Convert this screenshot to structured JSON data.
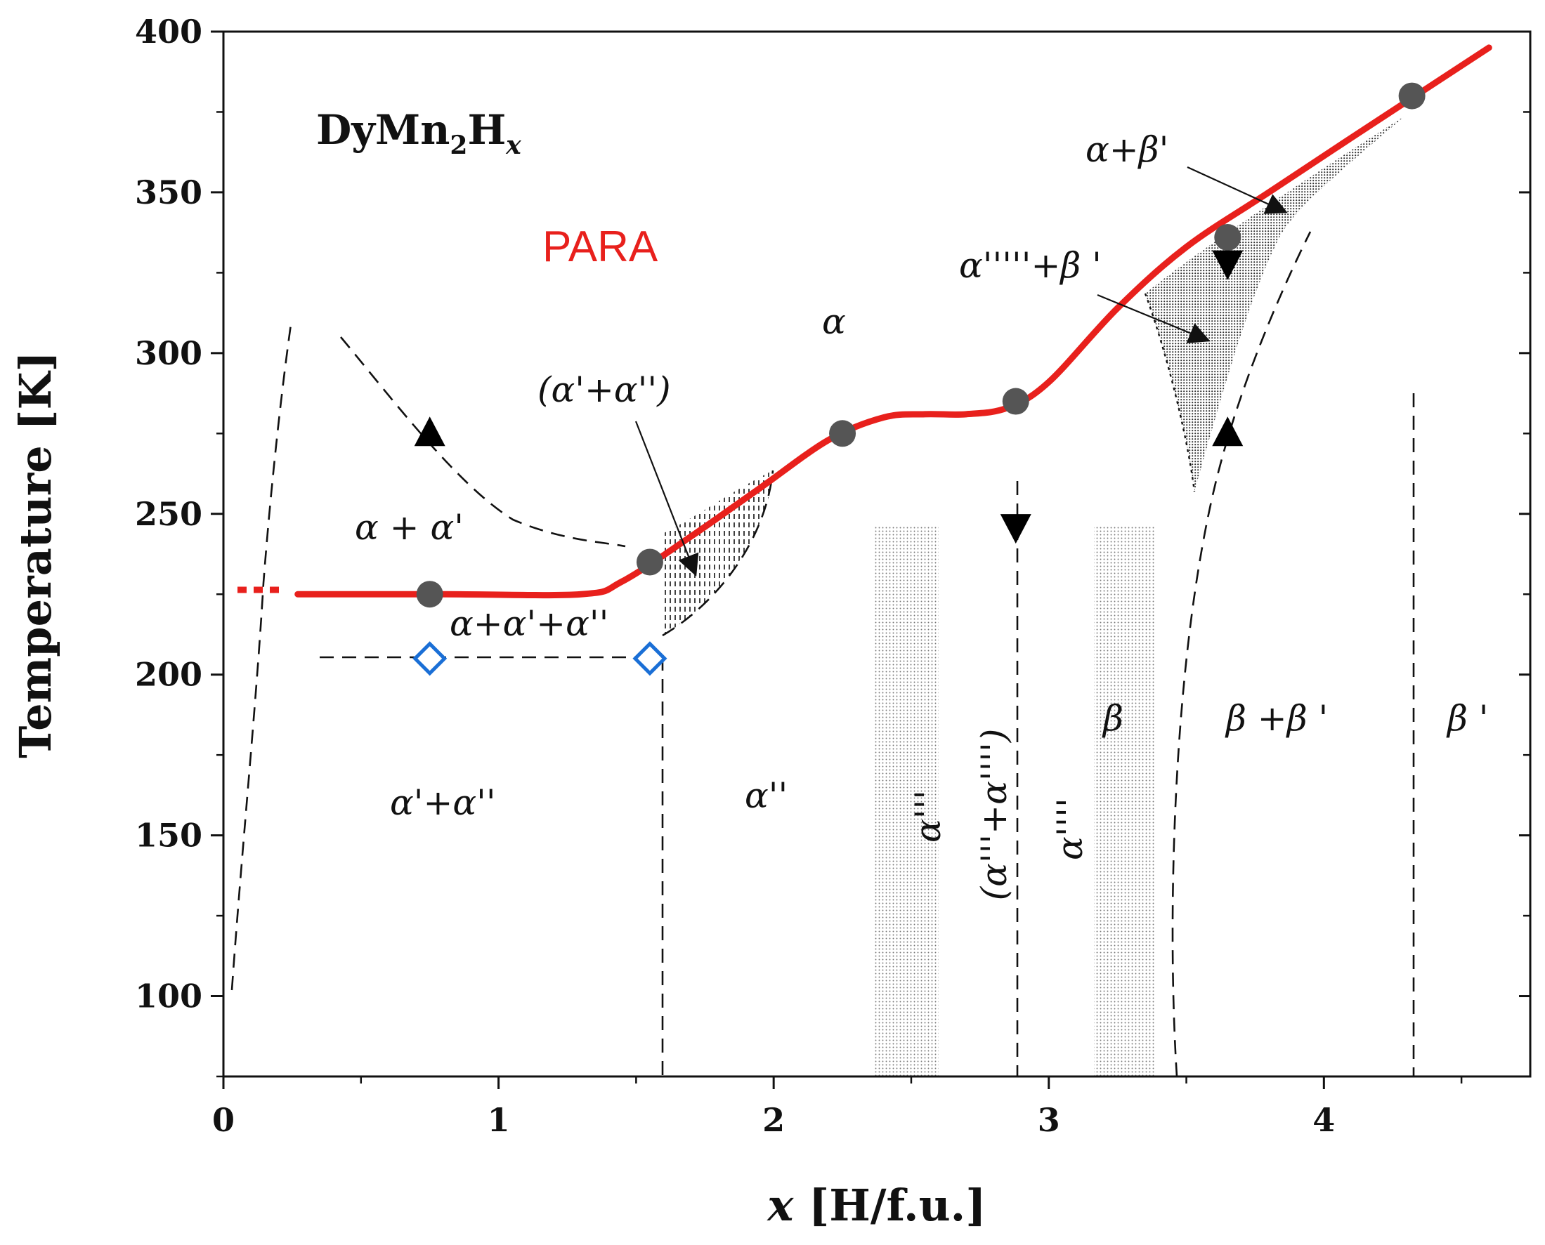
{
  "chart_data": {
    "type": "scatter",
    "title": "",
    "compound_label": {
      "base": "DyMn",
      "sub1": "2",
      "mid": "H",
      "sub2": "x"
    },
    "xlabel": {
      "var": "x",
      "unit": " [H/f.u.]"
    },
    "ylabel": "Temperature [K]",
    "xlim": [
      0,
      4.75
    ],
    "ylim": [
      75,
      400
    ],
    "x_ticks": [
      {
        "value": 0,
        "label": "0"
      },
      {
        "value": 1,
        "label": "1"
      },
      {
        "value": 2,
        "label": "2"
      },
      {
        "value": 3,
        "label": "3"
      },
      {
        "value": 4,
        "label": "4"
      }
    ],
    "y_ticks": [
      {
        "value": 100,
        "label": "100"
      },
      {
        "value": 150,
        "label": "150"
      },
      {
        "value": 200,
        "label": "200"
      },
      {
        "value": 250,
        "label": "250"
      },
      {
        "value": 300,
        "label": "300"
      },
      {
        "value": 350,
        "label": "350"
      },
      {
        "value": 400,
        "label": "400"
      }
    ],
    "colors": {
      "transition_line": "#e8201c",
      "circles": "#555555",
      "diamonds": "#1a6fd6",
      "triangles": "#000000"
    },
    "series": [
      {
        "name": "circles",
        "marker": "circle",
        "x": [
          0.75,
          1.55,
          2.25,
          2.88,
          3.65,
          4.32
        ],
        "y": [
          225,
          235,
          275,
          285,
          336,
          380
        ]
      },
      {
        "name": "diamonds",
        "marker": "diamond",
        "x": [
          0.75,
          1.55
        ],
        "y": [
          205,
          205
        ]
      },
      {
        "name": "triangles-up",
        "marker": "triangle-up",
        "x": [
          0.75,
          3.65
        ],
        "y": [
          275,
          275
        ]
      },
      {
        "name": "triangles-down",
        "marker": "triangle-down",
        "x": [
          2.88,
          3.65
        ],
        "y": [
          246,
          328
        ]
      },
      {
        "name": "transition-curve",
        "marker": "line",
        "x": [
          0.27,
          0.8,
          1.3,
          1.45,
          1.7,
          1.95,
          2.2,
          2.4,
          2.55,
          2.7,
          2.85,
          3.0,
          3.25,
          3.5,
          3.8,
          4.1,
          4.6
        ],
        "y": [
          225,
          225,
          225,
          229,
          243,
          258,
          273,
          280,
          281,
          281,
          283,
          291,
          314,
          333,
          350,
          367,
          395
        ]
      }
    ],
    "phase_labels": [
      {
        "text": "PARA",
        "x": 1.4,
        "y": 330
      },
      {
        "text": "α",
        "x": 2.25,
        "y": 305
      },
      {
        "text": "(α'+α'')",
        "x": 1.68,
        "y": 285
      },
      {
        "text": "α + α'",
        "x": 0.72,
        "y": 244
      },
      {
        "text": "α+α'+α''",
        "x": 0.96,
        "y": 212
      },
      {
        "text": "α'+α''",
        "x": 0.85,
        "y": 159
      },
      {
        "text": "α''",
        "x": 2.06,
        "y": 162
      },
      {
        "text": "α'''",
        "x": 2.53,
        "y": 160
      },
      {
        "text": "(α'''+α'''')",
        "x": 2.8,
        "y": 165
      },
      {
        "text": "α''''",
        "x": 3.06,
        "y": 153
      },
      {
        "text": "β",
        "x": 3.3,
        "y": 186
      },
      {
        "text": "β +β '",
        "x": 3.9,
        "y": 186
      },
      {
        "text": "β '",
        "x": 4.55,
        "y": 186
      },
      {
        "text": "α+β'",
        "x": 3.67,
        "y": 360
      },
      {
        "text": "α'''''+β '",
        "x": 3.3,
        "y": 323
      }
    ]
  }
}
